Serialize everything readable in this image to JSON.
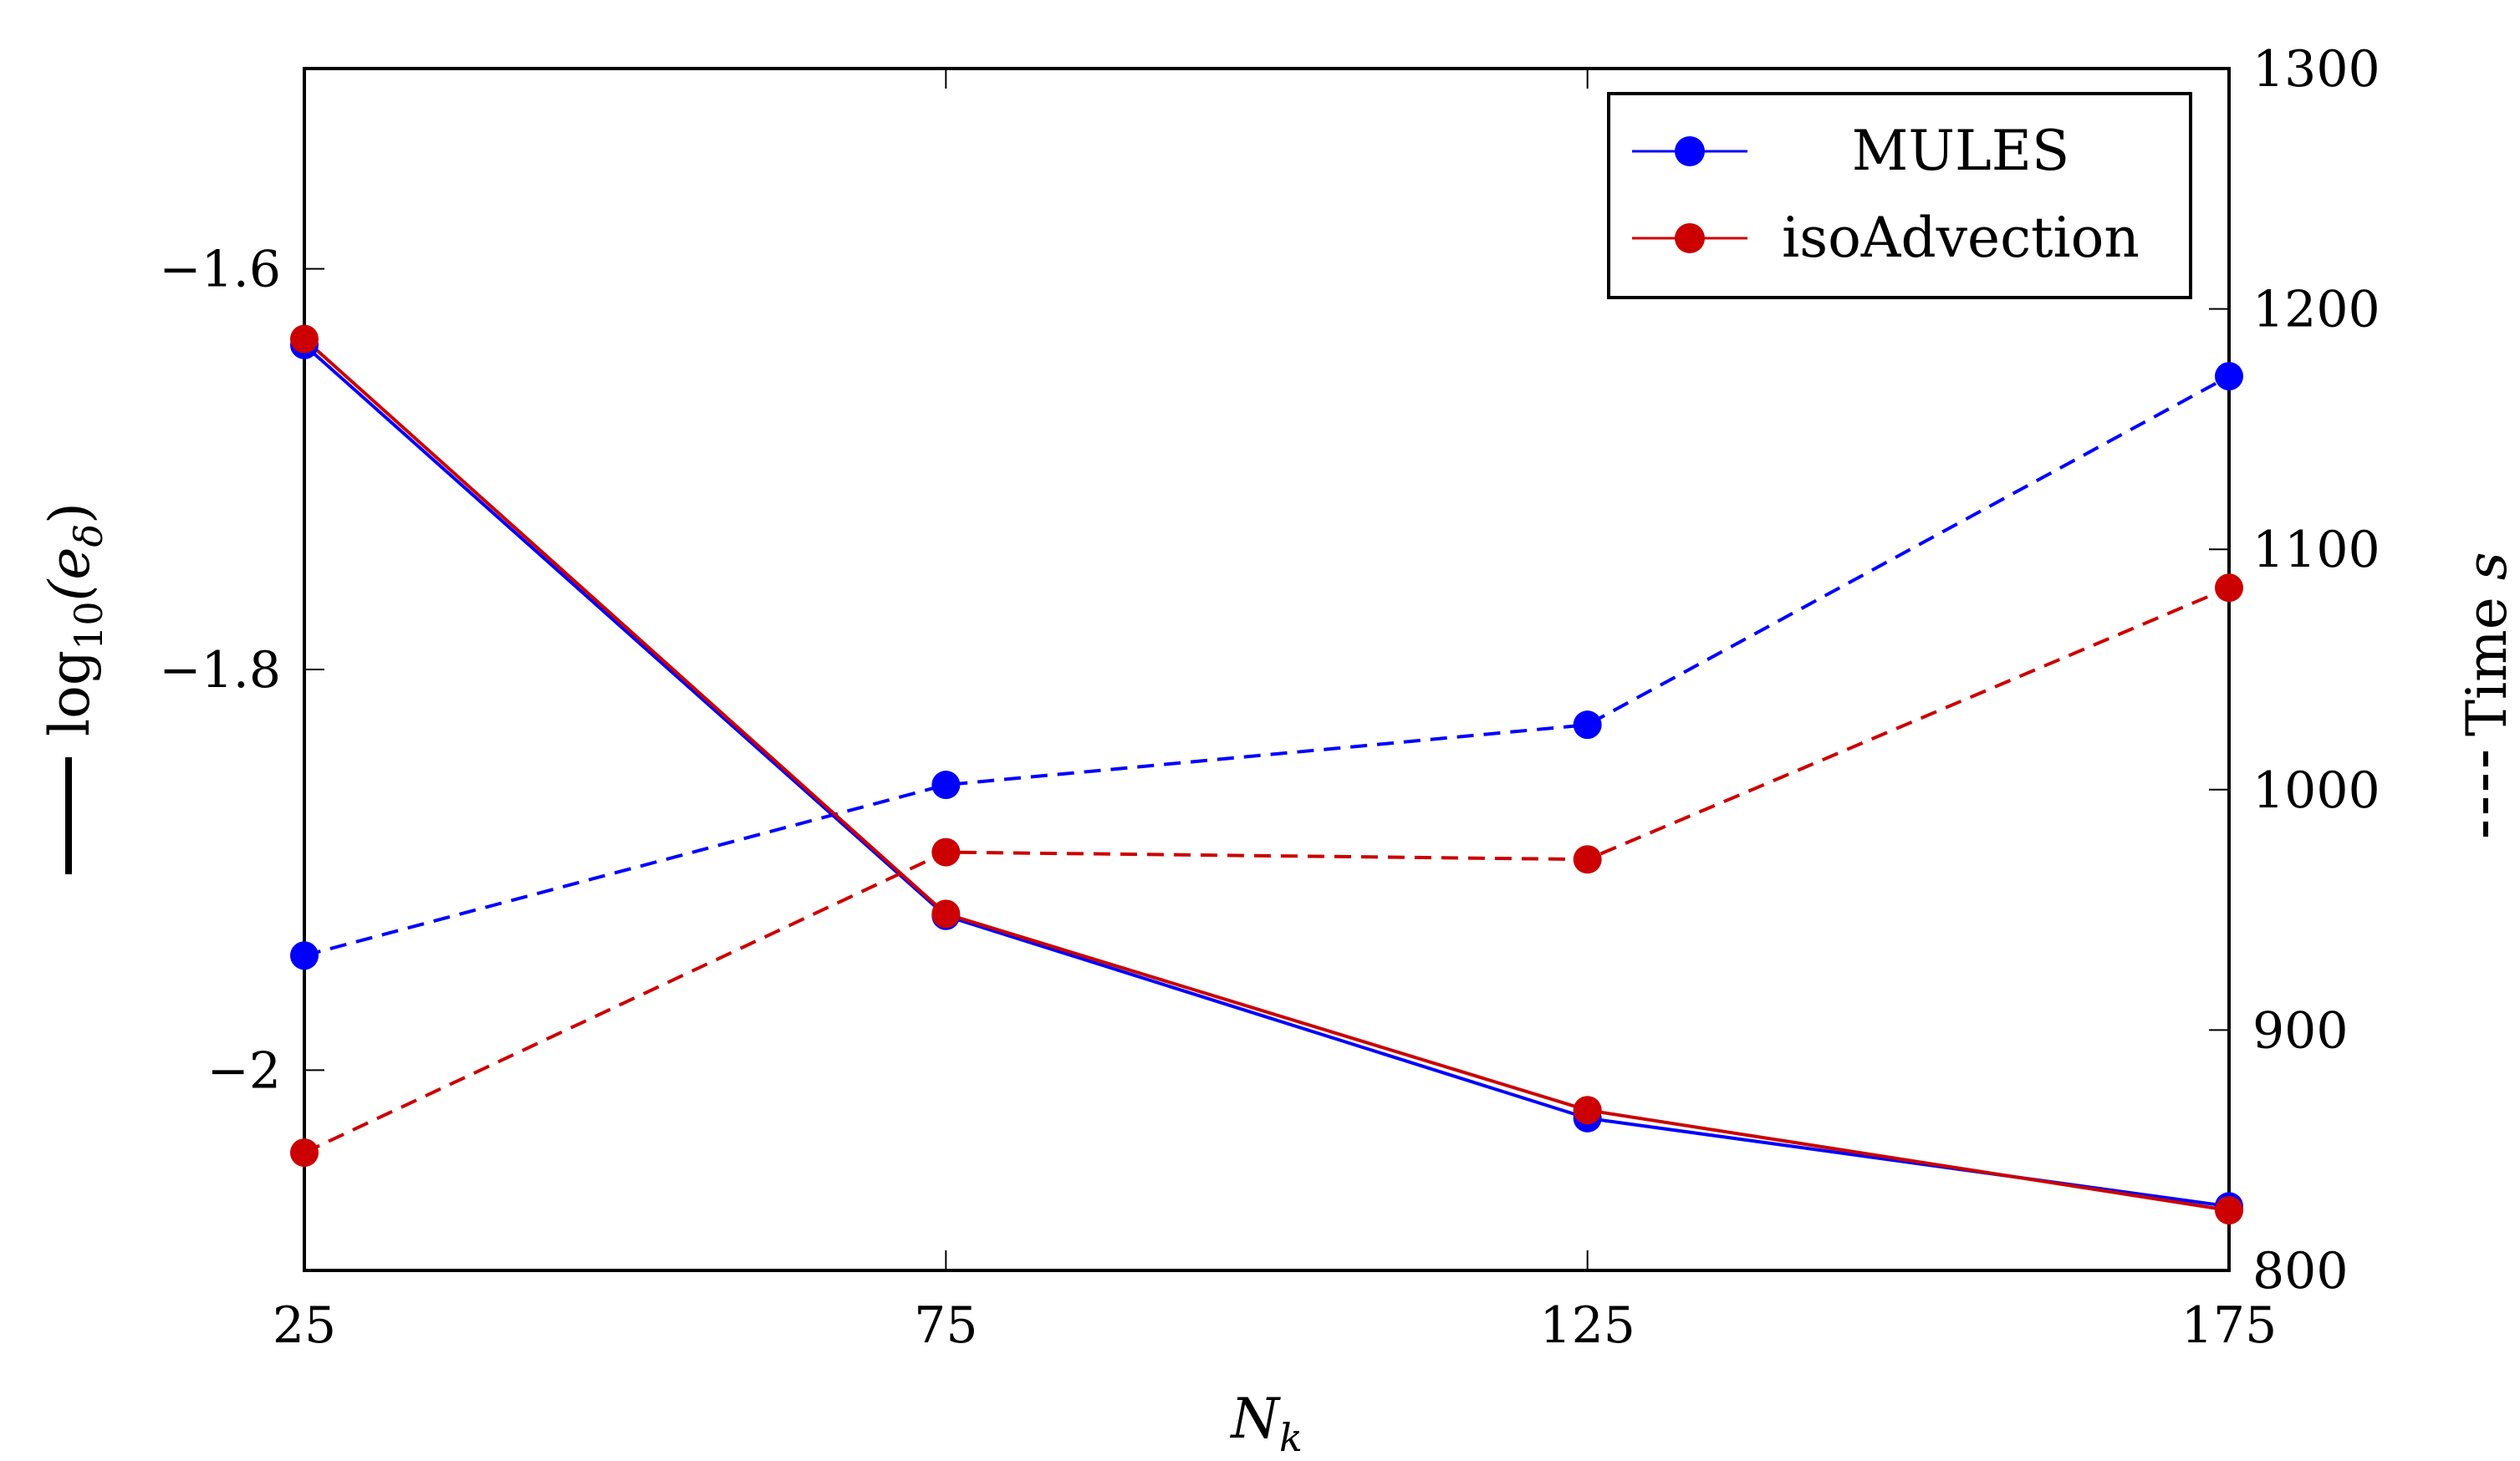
{
  "chart_data": {
    "type": "line",
    "x": [
      25,
      75,
      125,
      175
    ],
    "xlabel": "N",
    "xlabel_subscript": "k",
    "xlim": [
      25,
      175
    ],
    "xticks": [
      "25",
      "75",
      "125",
      "175"
    ],
    "left_axis": {
      "label_prefix": "log",
      "label_base": "10",
      "label_arg": "(e",
      "label_arg_sub": "δ",
      "label_close": ")",
      "line_style": "solid",
      "ylim": [
        -2.1,
        -1.5
      ],
      "ticks": [
        -2.0,
        -1.8,
        -1.6
      ],
      "tick_labels": [
        "−2",
        "−1.8",
        "−1.6"
      ]
    },
    "right_axis": {
      "label": "Time",
      "label_unit": "s",
      "line_style": "dashed",
      "ylim": [
        800,
        1300
      ],
      "ticks": [
        800,
        900,
        1000,
        1100,
        1200,
        1300
      ],
      "tick_labels": [
        "800",
        "900",
        "1000",
        "1100",
        "1200",
        "1300"
      ]
    },
    "series": [
      {
        "name": "MULES",
        "color": "#0000ff",
        "error_log10": [
          -1.638,
          -1.923,
          -2.024,
          -2.068
        ],
        "time_s": [
          931,
          1002,
          1027,
          1172
        ]
      },
      {
        "name": "isoAdvection",
        "color": "#cc0000",
        "error_log10": [
          -1.635,
          -1.922,
          -2.02,
          -2.07
        ],
        "time_s": [
          849,
          974,
          971,
          1084
        ]
      }
    ],
    "legend_position": "top-right",
    "grid": false
  }
}
